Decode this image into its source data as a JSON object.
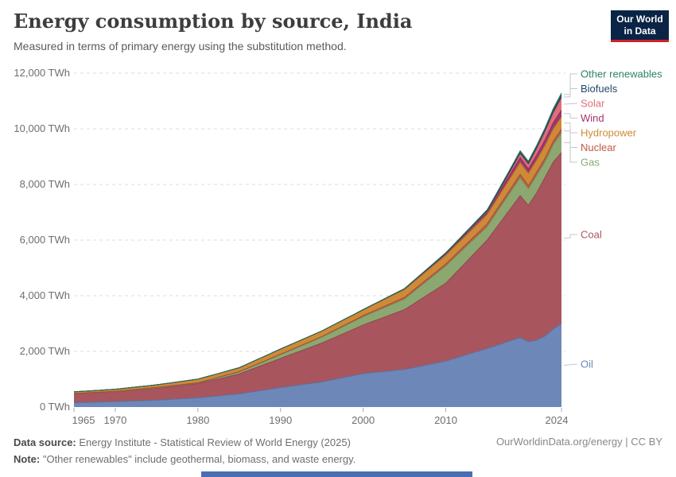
{
  "header": {
    "title": "Energy consumption by source, India",
    "subtitle": "Measured in terms of primary energy using the substitution method.",
    "logo": {
      "line1": "Our World",
      "line2": "in Data",
      "bg": "#0a2446",
      "accent": "#c8232d"
    }
  },
  "chart_data": {
    "type": "area",
    "stacked": true,
    "title": "Energy consumption by source, India",
    "xlabel": "",
    "ylabel": "TWh",
    "ylim": [
      0,
      12000
    ],
    "grid": "horizontal-dashed",
    "legend_position": "right",
    "ytick_values": [
      0,
      2000,
      4000,
      6000,
      8000,
      10000,
      12000
    ],
    "ytick_labels": [
      "0 TWh",
      "2,000 TWh",
      "4,000 TWh",
      "6,000 TWh",
      "8,000 TWh",
      "10,000 TWh",
      "12,000 TWh"
    ],
    "xticks": [
      1965,
      1970,
      1980,
      1990,
      2000,
      2010,
      2024
    ],
    "xtick_labels": [
      "1965",
      "1970",
      "1980",
      "1990",
      "2000",
      "2010",
      "2024"
    ],
    "x": [
      1965,
      1966,
      1967,
      1968,
      1969,
      1970,
      1971,
      1972,
      1973,
      1974,
      1975,
      1976,
      1977,
      1978,
      1979,
      1980,
      1981,
      1982,
      1983,
      1984,
      1985,
      1986,
      1987,
      1988,
      1989,
      1990,
      1991,
      1992,
      1993,
      1994,
      1995,
      1996,
      1997,
      1998,
      1999,
      2000,
      2001,
      2002,
      2003,
      2004,
      2005,
      2006,
      2007,
      2008,
      2009,
      2010,
      2011,
      2012,
      2013,
      2014,
      2015,
      2016,
      2017,
      2018,
      2019,
      2020,
      2021,
      2022,
      2023,
      2024
    ],
    "series": [
      {
        "name": "Oil",
        "key": "oil",
        "color": "#6D87B8",
        "values": [
          150,
          159,
          168,
          177,
          186,
          195,
          205,
          215,
          225,
          235,
          245,
          262,
          279,
          296,
          313,
          330,
          358,
          386,
          414,
          442,
          470,
          516,
          562,
          608,
          654,
          700,
          740,
          780,
          820,
          860,
          900,
          960,
          1020,
          1080,
          1140,
          1200,
          1230,
          1260,
          1290,
          1320,
          1350,
          1410,
          1470,
          1530,
          1590,
          1650,
          1740,
          1830,
          1920,
          2010,
          2100,
          2200,
          2300,
          2400,
          2500,
          2350,
          2400,
          2550,
          2800,
          3000
        ]
      },
      {
        "name": "Coal",
        "key": "coal",
        "color": "#A8555E",
        "values": [
          330,
          334,
          338,
          342,
          346,
          350,
          366,
          382,
          398,
          414,
          430,
          446,
          462,
          478,
          494,
          510,
          552,
          594,
          636,
          678,
          720,
          786,
          852,
          918,
          984,
          1050,
          1120,
          1190,
          1260,
          1330,
          1400,
          1470,
          1540,
          1610,
          1680,
          1750,
          1830,
          1910,
          1990,
          2070,
          2150,
          2280,
          2410,
          2540,
          2670,
          2800,
          3020,
          3240,
          3460,
          3680,
          3900,
          4200,
          4500,
          4800,
          5100,
          4900,
          5300,
          5700,
          6000,
          6150
        ]
      },
      {
        "name": "Gas",
        "key": "gas",
        "color": "#8CA870",
        "values": [
          10,
          10,
          11,
          11,
          12,
          12,
          13,
          13,
          14,
          14,
          15,
          17,
          19,
          21,
          23,
          25,
          34,
          43,
          52,
          61,
          70,
          82,
          94,
          106,
          118,
          130,
          146,
          162,
          178,
          194,
          210,
          226,
          242,
          258,
          274,
          290,
          308,
          326,
          344,
          362,
          380,
          428,
          476,
          524,
          572,
          620,
          592,
          564,
          536,
          508,
          480,
          520,
          560,
          600,
          640,
          590,
          620,
          560,
          620,
          700
        ]
      },
      {
        "name": "Nuclear",
        "key": "nuclear",
        "color": "#C05B43",
        "values": [
          0,
          0,
          0,
          0,
          4,
          7,
          9,
          10,
          12,
          13,
          15,
          14,
          12,
          11,
          9,
          8,
          9,
          10,
          11,
          12,
          13,
          14,
          15,
          15,
          16,
          17,
          18,
          19,
          20,
          21,
          22,
          27,
          31,
          36,
          40,
          45,
          48,
          51,
          54,
          57,
          60,
          62,
          64,
          66,
          68,
          70,
          76,
          82,
          88,
          94,
          100,
          105,
          110,
          115,
          120,
          115,
          120,
          125,
          130,
          140
        ]
      },
      {
        "name": "Hydropower",
        "key": "hydropower",
        "color": "#CE8A37",
        "values": [
          60,
          63,
          66,
          69,
          72,
          75,
          79,
          83,
          87,
          91,
          95,
          102,
          109,
          116,
          123,
          130,
          132,
          134,
          136,
          138,
          140,
          150,
          160,
          170,
          180,
          190,
          192,
          194,
          196,
          198,
          200,
          202,
          204,
          206,
          208,
          210,
          224,
          238,
          252,
          266,
          280,
          286,
          292,
          298,
          304,
          310,
          314,
          318,
          322,
          326,
          330,
          355,
          380,
          405,
          430,
          440,
          430,
          460,
          440,
          430
        ]
      },
      {
        "name": "Wind",
        "key": "wind",
        "color": "#A2356D",
        "values": [
          0,
          0,
          0,
          0,
          0,
          0,
          0,
          0,
          0,
          0,
          0,
          0,
          0,
          0,
          0,
          0,
          0,
          0,
          0,
          0,
          0,
          0,
          0,
          0,
          0,
          0,
          0,
          1,
          1,
          2,
          2,
          3,
          3,
          4,
          4,
          5,
          9,
          13,
          17,
          21,
          25,
          31,
          37,
          43,
          49,
          55,
          62,
          69,
          76,
          83,
          90,
          110,
          130,
          150,
          170,
          160,
          180,
          200,
          220,
          250
        ]
      },
      {
        "name": "Solar",
        "key": "solar",
        "color": "#DE6E78",
        "values": [
          0,
          0,
          0,
          0,
          0,
          0,
          0,
          0,
          0,
          0,
          0,
          0,
          0,
          0,
          0,
          0,
          0,
          0,
          0,
          0,
          0,
          0,
          0,
          0,
          0,
          0,
          0,
          0,
          0,
          0,
          0,
          0,
          0,
          0,
          0,
          0,
          0,
          0,
          0,
          0,
          0,
          0,
          0,
          0,
          0,
          0,
          2,
          5,
          10,
          14,
          17,
          35,
          60,
          90,
          130,
          160,
          220,
          280,
          340,
          430
        ]
      },
      {
        "name": "Biofuels",
        "key": "biofuels",
        "color": "#24466B",
        "values": [
          0,
          0,
          0,
          0,
          0,
          0,
          0,
          0,
          0,
          0,
          0,
          0,
          0,
          0,
          0,
          0,
          0,
          0,
          0,
          0,
          0,
          0,
          0,
          0,
          0,
          0,
          0,
          0,
          0,
          0,
          0,
          0,
          0,
          0,
          0,
          1,
          2,
          3,
          4,
          4,
          5,
          7,
          9,
          11,
          13,
          15,
          17,
          19,
          21,
          23,
          25,
          31,
          37,
          44,
          50,
          45,
          55,
          65,
          80,
          90
        ]
      },
      {
        "name": "Other renewables",
        "key": "other-renewables",
        "color": "#2C8465",
        "values": [
          0,
          0,
          0,
          0,
          0,
          0,
          0,
          0,
          0,
          0,
          0,
          0,
          0,
          0,
          0,
          0,
          0,
          0,
          0,
          0,
          0,
          0,
          0,
          0,
          0,
          1,
          1,
          1,
          2,
          2,
          2,
          2,
          3,
          3,
          4,
          4,
          5,
          6,
          7,
          9,
          10,
          13,
          16,
          19,
          22,
          25,
          29,
          33,
          37,
          41,
          45,
          51,
          57,
          64,
          70,
          72,
          75,
          80,
          88,
          95
        ]
      }
    ]
  },
  "footer": {
    "source_label": "Data source:",
    "source_text": "Energy Institute - Statistical Review of World Energy (2025)",
    "note_label": "Note:",
    "note_text": "\"Other renewables\" include geothermal, biomass, and waste energy.",
    "attribution": "OurWorldinData.org/energy | CC BY"
  }
}
